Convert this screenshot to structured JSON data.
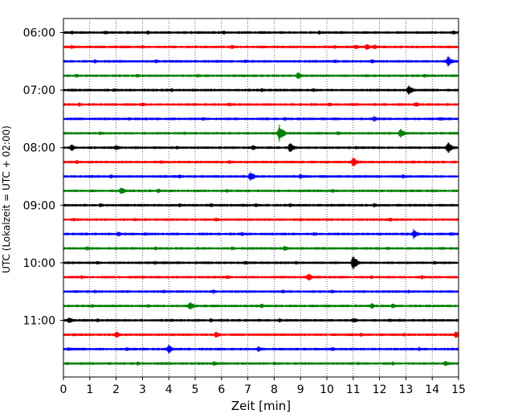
{
  "chart_data": {
    "type": "line",
    "subtype": "helicorder",
    "xlabel": "Zeit  [min]",
    "ylabel": "UTC (Lokalzeit = UTC + 02:00)",
    "xlim": [
      0,
      15
    ],
    "x_ticks": [
      0,
      1,
      2,
      3,
      4,
      5,
      6,
      7,
      8,
      9,
      10,
      11,
      12,
      13,
      14,
      15
    ],
    "y_tick_labels": [
      "06:00",
      "07:00",
      "08:00",
      "09:00",
      "10:00",
      "11:00"
    ],
    "minutes_per_line": 15,
    "line_count": 24,
    "grid": "vertical-dotted",
    "legend": "none",
    "color_cycle": [
      "#000000",
      "#ff0000",
      "#0000ff",
      "#008000"
    ],
    "series": [
      {
        "start": "06:00",
        "events": [
          {
            "t": 0.3,
            "a": 3
          },
          {
            "t": 1.6,
            "a": 3
          },
          {
            "t": 3.2,
            "a": 3
          },
          {
            "t": 6.1,
            "a": 3
          },
          {
            "t": 9.7,
            "a": 3
          },
          {
            "t": 14.8,
            "a": 3
          }
        ]
      },
      {
        "start": "06:15",
        "events": [
          {
            "t": 0.3,
            "a": 3
          },
          {
            "t": 3.0,
            "a": 3
          },
          {
            "t": 6.4,
            "a": 3
          },
          {
            "t": 10.3,
            "a": 3
          },
          {
            "t": 11.1,
            "a": 4
          },
          {
            "t": 11.5,
            "a": 5
          },
          {
            "t": 11.8,
            "a": 4
          }
        ]
      },
      {
        "start": "06:30",
        "events": [
          {
            "t": 1.2,
            "a": 3
          },
          {
            "t": 3.5,
            "a": 3
          },
          {
            "t": 6.9,
            "a": 3
          },
          {
            "t": 10.3,
            "a": 3
          },
          {
            "t": 11.7,
            "a": 3
          },
          {
            "t": 14.6,
            "a": 7
          }
        ]
      },
      {
        "start": "06:45",
        "events": [
          {
            "t": 0.5,
            "a": 3
          },
          {
            "t": 2.8,
            "a": 3
          },
          {
            "t": 5.1,
            "a": 3
          },
          {
            "t": 8.9,
            "a": 5
          },
          {
            "t": 11.5,
            "a": 3
          },
          {
            "t": 13.7,
            "a": 3
          }
        ]
      },
      {
        "start": "07:00",
        "events": [
          {
            "t": 1.9,
            "a": 3
          },
          {
            "t": 4.1,
            "a": 3
          },
          {
            "t": 7.5,
            "a": 3
          },
          {
            "t": 9.5,
            "a": 3
          },
          {
            "t": 13.1,
            "a": 8
          }
        ]
      },
      {
        "start": "07:15",
        "events": [
          {
            "t": 0.6,
            "a": 3
          },
          {
            "t": 3.0,
            "a": 3
          },
          {
            "t": 6.3,
            "a": 3
          },
          {
            "t": 10.1,
            "a": 3
          },
          {
            "t": 13.4,
            "a": 4
          }
        ]
      },
      {
        "start": "07:30",
        "events": [
          {
            "t": 2.5,
            "a": 3
          },
          {
            "t": 5.3,
            "a": 3
          },
          {
            "t": 8.4,
            "a": 3
          },
          {
            "t": 11.8,
            "a": 4
          },
          {
            "t": 14.3,
            "a": 3
          }
        ]
      },
      {
        "start": "07:45",
        "events": [
          {
            "t": 1.4,
            "a": 3
          },
          {
            "t": 4.6,
            "a": 3
          },
          {
            "t": 8.2,
            "a": 11
          },
          {
            "t": 10.4,
            "a": 3
          },
          {
            "t": 12.8,
            "a": 7
          }
        ]
      },
      {
        "start": "08:00",
        "events": [
          {
            "t": 0.3,
            "a": 5
          },
          {
            "t": 2.0,
            "a": 4
          },
          {
            "t": 4.3,
            "a": 3
          },
          {
            "t": 7.2,
            "a": 4
          },
          {
            "t": 8.6,
            "a": 7
          },
          {
            "t": 11.1,
            "a": 3
          },
          {
            "t": 14.6,
            "a": 9
          }
        ]
      },
      {
        "start": "08:15",
        "events": [
          {
            "t": 0.5,
            "a": 3
          },
          {
            "t": 3.7,
            "a": 3
          },
          {
            "t": 6.3,
            "a": 3
          },
          {
            "t": 11.0,
            "a": 7
          },
          {
            "t": 13.3,
            "a": 3
          }
        ]
      },
      {
        "start": "08:30",
        "events": [
          {
            "t": 1.8,
            "a": 3
          },
          {
            "t": 4.4,
            "a": 3
          },
          {
            "t": 7.1,
            "a": 7
          },
          {
            "t": 9.0,
            "a": 4
          },
          {
            "t": 12.9,
            "a": 3
          }
        ]
      },
      {
        "start": "08:45",
        "events": [
          {
            "t": 2.2,
            "a": 6
          },
          {
            "t": 3.6,
            "a": 3
          },
          {
            "t": 6.2,
            "a": 3
          },
          {
            "t": 10.2,
            "a": 3
          },
          {
            "t": 14.0,
            "a": 3
          }
        ]
      },
      {
        "start": "09:00",
        "events": [
          {
            "t": 1.4,
            "a": 3
          },
          {
            "t": 4.4,
            "a": 3
          },
          {
            "t": 5.6,
            "a": 3
          },
          {
            "t": 7.3,
            "a": 3
          },
          {
            "t": 8.6,
            "a": 3
          },
          {
            "t": 11.8,
            "a": 3
          }
        ]
      },
      {
        "start": "09:15",
        "events": [
          {
            "t": 0.4,
            "a": 3
          },
          {
            "t": 2.7,
            "a": 3
          },
          {
            "t": 5.8,
            "a": 3
          },
          {
            "t": 9.0,
            "a": 3
          },
          {
            "t": 12.4,
            "a": 3
          }
        ]
      },
      {
        "start": "09:30",
        "events": [
          {
            "t": 2.1,
            "a": 4
          },
          {
            "t": 3.1,
            "a": 3
          },
          {
            "t": 6.8,
            "a": 3
          },
          {
            "t": 9.5,
            "a": 3
          },
          {
            "t": 13.3,
            "a": 7
          },
          {
            "t": 14.7,
            "a": 3
          }
        ]
      },
      {
        "start": "09:45",
        "events": [
          {
            "t": 0.9,
            "a": 3
          },
          {
            "t": 3.5,
            "a": 3
          },
          {
            "t": 6.4,
            "a": 3
          },
          {
            "t": 8.4,
            "a": 4
          },
          {
            "t": 12.3,
            "a": 3
          }
        ]
      },
      {
        "start": "10:00",
        "events": [
          {
            "t": 1.3,
            "a": 3
          },
          {
            "t": 3.5,
            "a": 3
          },
          {
            "t": 6.9,
            "a": 3
          },
          {
            "t": 8.8,
            "a": 3
          },
          {
            "t": 11.0,
            "a": 10
          },
          {
            "t": 14.1,
            "a": 3
          }
        ]
      },
      {
        "start": "10:15",
        "events": [
          {
            "t": 0.7,
            "a": 3
          },
          {
            "t": 3.0,
            "a": 3
          },
          {
            "t": 6.2,
            "a": 3
          },
          {
            "t": 9.3,
            "a": 6
          },
          {
            "t": 11.7,
            "a": 3
          },
          {
            "t": 13.6,
            "a": 3
          }
        ]
      },
      {
        "start": "10:30",
        "events": [
          {
            "t": 1.2,
            "a": 3
          },
          {
            "t": 3.8,
            "a": 3
          },
          {
            "t": 5.7,
            "a": 3
          },
          {
            "t": 8.3,
            "a": 3
          },
          {
            "t": 10.2,
            "a": 3
          },
          {
            "t": 13.1,
            "a": 3
          }
        ]
      },
      {
        "start": "10:45",
        "events": [
          {
            "t": 1.1,
            "a": 3
          },
          {
            "t": 3.2,
            "a": 3
          },
          {
            "t": 4.8,
            "a": 6
          },
          {
            "t": 7.5,
            "a": 4
          },
          {
            "t": 11.7,
            "a": 4
          },
          {
            "t": 12.5,
            "a": 4
          }
        ]
      },
      {
        "start": "11:00",
        "events": [
          {
            "t": 0.2,
            "a": 5
          },
          {
            "t": 1.3,
            "a": 3
          },
          {
            "t": 4.1,
            "a": 3
          },
          {
            "t": 5.6,
            "a": 3
          },
          {
            "t": 8.2,
            "a": 3
          },
          {
            "t": 11.0,
            "a": 4
          },
          {
            "t": 12.4,
            "a": 3
          }
        ]
      },
      {
        "start": "11:15",
        "events": [
          {
            "t": 0.4,
            "a": 3
          },
          {
            "t": 2.0,
            "a": 5
          },
          {
            "t": 5.8,
            "a": 5
          },
          {
            "t": 11.3,
            "a": 3
          },
          {
            "t": 12.9,
            "a": 3
          },
          {
            "t": 14.9,
            "a": 5
          }
        ]
      },
      {
        "start": "11:30",
        "events": [
          {
            "t": 0.2,
            "a": 3
          },
          {
            "t": 2.4,
            "a": 3
          },
          {
            "t": 4.0,
            "a": 6
          },
          {
            "t": 7.4,
            "a": 4
          },
          {
            "t": 10.2,
            "a": 3
          },
          {
            "t": 13.5,
            "a": 3
          }
        ]
      },
      {
        "start": "11:45",
        "events": [
          {
            "t": 0.1,
            "a": 3
          },
          {
            "t": 2.8,
            "a": 3
          },
          {
            "t": 5.7,
            "a": 4
          },
          {
            "t": 8.0,
            "a": 3
          },
          {
            "t": 11.2,
            "a": 3
          },
          {
            "t": 12.5,
            "a": 3
          },
          {
            "t": 14.5,
            "a": 4
          }
        ]
      }
    ]
  }
}
